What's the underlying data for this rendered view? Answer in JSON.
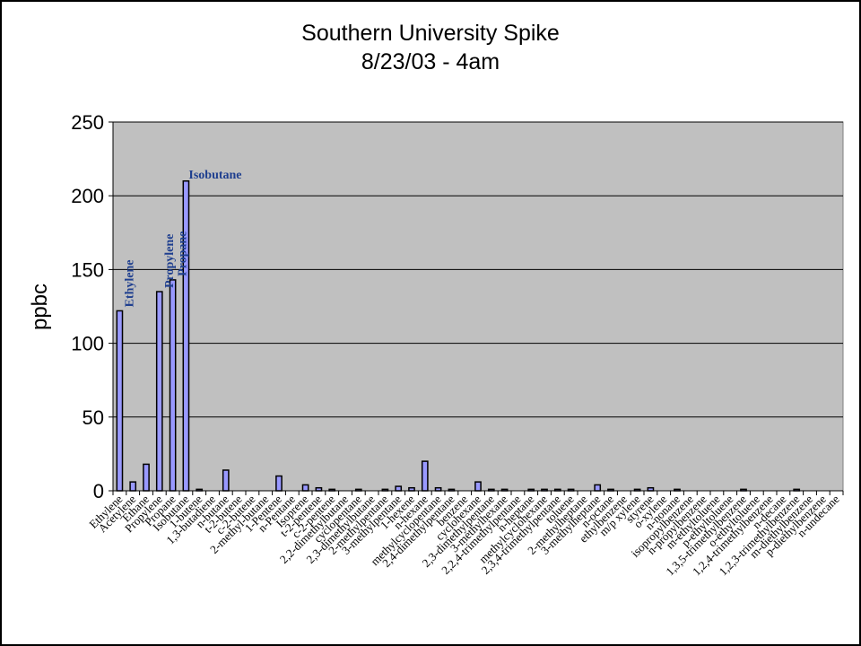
{
  "chart_data": {
    "type": "bar",
    "title": "Southern University Spike",
    "subtitle": "8/23/03 - 4am",
    "xlabel": "",
    "ylabel": "ppbc",
    "ylim": [
      0,
      250
    ],
    "yticks": [
      0,
      50,
      100,
      150,
      200,
      250
    ],
    "grid": true,
    "legend": "none",
    "colors": {
      "bar_fill": "#9999ff",
      "bar_stroke": "#000000",
      "plot_bg": "#c0c0c0",
      "annotation": "#1f3f8f"
    },
    "categories": [
      "Ethylene",
      "Acetylene",
      "Ethane",
      "Propylene",
      "Propane",
      "Isobutane",
      "1-butene",
      "1,3-butadiene",
      "n-butane",
      "t-2-butene",
      "c-2-butene",
      "2-methyl-butane",
      "1-Pentene",
      "n-Pentane",
      "Isoprene",
      "t-2-pentene",
      "c-2-pentene",
      "2,2-dimethylbutane",
      "cyclopentane",
      "2,3-dimethylbutane",
      "2-methylpentane",
      "3-methylpentane",
      "1-hexene",
      "n-hexane",
      "methylcyclopentane",
      "2,4-dimethylpentane",
      "benzene",
      "cyclohexane",
      "2,3-dimethylpentane",
      "3-methylhexane",
      "2,2,4-trimethylpentane",
      "n-heptane",
      "methylcyclohexane",
      "2,3,4-trimethylpentane",
      "toluene",
      "2-methylheptane",
      "3-methylheptane",
      "n-octane",
      "ethylbenzene",
      "m/p xylene",
      "styrene",
      "o-xylene",
      "n-nonane",
      "isopropylbenzene",
      "n-propylbenzene",
      "m-ethyltoluene",
      "p-ethyltoluene",
      "1,3,5-trimethylbenzene",
      "o-ethyltoluene",
      "1,2,4-trimethylbenzene",
      "n-decane",
      "1,2,3-trimethylbenzene",
      "m-diethylbenzene",
      "p-diethylbenzene",
      "n-undecane"
    ],
    "values": [
      122,
      6,
      18,
      135,
      143,
      210,
      1,
      0,
      14,
      0,
      0,
      0,
      10,
      0,
      4,
      2,
      1,
      0,
      1,
      0,
      1,
      3,
      2,
      20,
      2,
      1,
      0,
      6,
      1,
      1,
      0,
      1,
      1,
      1,
      1,
      0,
      4,
      1,
      0,
      1,
      2,
      0,
      1,
      0,
      0,
      0,
      0,
      1,
      0,
      0,
      0,
      1,
      0,
      0,
      0
    ],
    "annotations": [
      {
        "text": "Ethylene",
        "category": "Ethylene",
        "orientation": "vertical"
      },
      {
        "text": "Propylene",
        "category": "Propylene",
        "orientation": "vertical"
      },
      {
        "text": "Propane",
        "category": "Propane",
        "orientation": "vertical"
      },
      {
        "text": "Isobutane",
        "category": "Isobutane",
        "orientation": "horizontal"
      }
    ]
  }
}
